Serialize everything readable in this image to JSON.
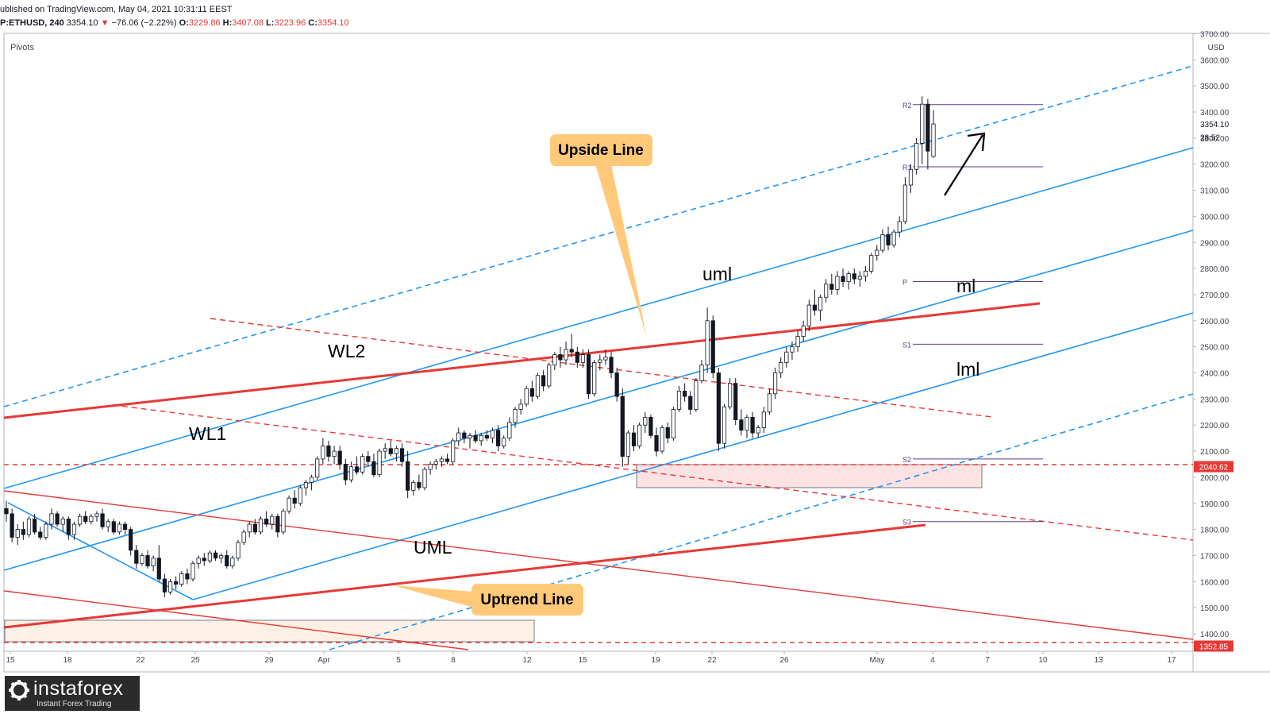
{
  "header": {
    "published": "ublished on TradingView.com, May 04, 2021 10:31:11 EEST",
    "symbol": "P:ETHUSD, 240",
    "price": "3354.10",
    "change_arrow": "▼",
    "change": "−76.06 (−2.22%)",
    "o_label": "O:",
    "o": "3229.86",
    "h_label": "H:",
    "h": "3407.08",
    "l_label": "L:",
    "l": "3223.96",
    "c_label": "C:",
    "c": "3354.10"
  },
  "indicator": "Pivots",
  "logo": {
    "name": "instaforex",
    "tagline": "Instant Forex Trading"
  },
  "chart_data": {
    "type": "candlestick",
    "currency": "USD",
    "y_ticks": [
      1400,
      1500,
      1600,
      1700,
      1800,
      1900,
      2000,
      2100,
      2200,
      2300,
      2400,
      2500,
      2600,
      2700,
      2800,
      2900,
      3000,
      3100,
      3200,
      3300,
      3400,
      3500,
      3600,
      3700
    ],
    "x_ticks": [
      "15",
      "18",
      "22",
      "25",
      "29",
      "Apr",
      "5",
      "8",
      "12",
      "15",
      "19",
      "22",
      "26",
      "May",
      "4",
      "7",
      "10",
      "13",
      "17"
    ],
    "price_labels": [
      {
        "text": "3354.10",
        "value": 3354.1
      },
      {
        "text": "28:52",
        "value": 3304
      }
    ],
    "level_labels": [
      {
        "text": "2040.62",
        "value": 2040.62,
        "color": "#e53935"
      },
      {
        "text": "1352.85",
        "value": 1352.85,
        "color": "#e53935"
      }
    ],
    "pivots": [
      {
        "name": "R2",
        "value": 3428
      },
      {
        "name": "R1",
        "value": 3190
      },
      {
        "name": "P",
        "value": 2750
      },
      {
        "name": "S1",
        "value": 2510
      },
      {
        "name": "S2",
        "value": 2070
      },
      {
        "name": "S3",
        "value": 1830
      }
    ],
    "line_labels": [
      "uml",
      "ml",
      "lml",
      "WL1",
      "WL2",
      "UML"
    ],
    "callouts": [
      "Upside Line",
      "Uptrend Line"
    ],
    "candles": [
      {
        "o": 1880,
        "h": 1910,
        "l": 1830,
        "c": 1860
      },
      {
        "o": 1860,
        "h": 1880,
        "l": 1750,
        "c": 1770
      },
      {
        "o": 1770,
        "h": 1820,
        "l": 1740,
        "c": 1800
      },
      {
        "o": 1800,
        "h": 1830,
        "l": 1760,
        "c": 1780
      },
      {
        "o": 1780,
        "h": 1850,
        "l": 1770,
        "c": 1840
      },
      {
        "o": 1840,
        "h": 1860,
        "l": 1780,
        "c": 1790
      },
      {
        "o": 1790,
        "h": 1810,
        "l": 1760,
        "c": 1770
      },
      {
        "o": 1770,
        "h": 1830,
        "l": 1760,
        "c": 1820
      },
      {
        "o": 1820,
        "h": 1880,
        "l": 1800,
        "c": 1860
      },
      {
        "o": 1860,
        "h": 1870,
        "l": 1810,
        "c": 1820
      },
      {
        "o": 1820,
        "h": 1850,
        "l": 1790,
        "c": 1840
      },
      {
        "o": 1840,
        "h": 1850,
        "l": 1760,
        "c": 1780
      },
      {
        "o": 1780,
        "h": 1830,
        "l": 1760,
        "c": 1820
      },
      {
        "o": 1820,
        "h": 1860,
        "l": 1810,
        "c": 1850
      },
      {
        "o": 1850,
        "h": 1870,
        "l": 1820,
        "c": 1830
      },
      {
        "o": 1830,
        "h": 1860,
        "l": 1820,
        "c": 1850
      },
      {
        "o": 1850,
        "h": 1870,
        "l": 1830,
        "c": 1860
      },
      {
        "o": 1860,
        "h": 1880,
        "l": 1800,
        "c": 1810
      },
      {
        "o": 1810,
        "h": 1840,
        "l": 1790,
        "c": 1830
      },
      {
        "o": 1830,
        "h": 1840,
        "l": 1780,
        "c": 1790
      },
      {
        "o": 1790,
        "h": 1830,
        "l": 1780,
        "c": 1820
      },
      {
        "o": 1820,
        "h": 1830,
        "l": 1780,
        "c": 1800
      },
      {
        "o": 1800,
        "h": 1810,
        "l": 1700,
        "c": 1720
      },
      {
        "o": 1720,
        "h": 1740,
        "l": 1650,
        "c": 1670
      },
      {
        "o": 1670,
        "h": 1710,
        "l": 1660,
        "c": 1700
      },
      {
        "o": 1700,
        "h": 1720,
        "l": 1650,
        "c": 1660
      },
      {
        "o": 1660,
        "h": 1700,
        "l": 1640,
        "c": 1690
      },
      {
        "o": 1690,
        "h": 1740,
        "l": 1600,
        "c": 1610
      },
      {
        "o": 1610,
        "h": 1630,
        "l": 1540,
        "c": 1560
      },
      {
        "o": 1560,
        "h": 1610,
        "l": 1550,
        "c": 1600
      },
      {
        "o": 1600,
        "h": 1620,
        "l": 1570,
        "c": 1590
      },
      {
        "o": 1590,
        "h": 1640,
        "l": 1580,
        "c": 1630
      },
      {
        "o": 1630,
        "h": 1650,
        "l": 1590,
        "c": 1610
      },
      {
        "o": 1610,
        "h": 1680,
        "l": 1600,
        "c": 1670
      },
      {
        "o": 1670,
        "h": 1700,
        "l": 1650,
        "c": 1690
      },
      {
        "o": 1690,
        "h": 1710,
        "l": 1660,
        "c": 1680
      },
      {
        "o": 1680,
        "h": 1720,
        "l": 1670,
        "c": 1710
      },
      {
        "o": 1710,
        "h": 1720,
        "l": 1680,
        "c": 1690
      },
      {
        "o": 1690,
        "h": 1710,
        "l": 1670,
        "c": 1700
      },
      {
        "o": 1700,
        "h": 1720,
        "l": 1650,
        "c": 1660
      },
      {
        "o": 1660,
        "h": 1700,
        "l": 1650,
        "c": 1690
      },
      {
        "o": 1690,
        "h": 1760,
        "l": 1680,
        "c": 1750
      },
      {
        "o": 1750,
        "h": 1800,
        "l": 1740,
        "c": 1790
      },
      {
        "o": 1790,
        "h": 1830,
        "l": 1770,
        "c": 1820
      },
      {
        "o": 1820,
        "h": 1840,
        "l": 1780,
        "c": 1790
      },
      {
        "o": 1790,
        "h": 1850,
        "l": 1780,
        "c": 1840
      },
      {
        "o": 1840,
        "h": 1870,
        "l": 1810,
        "c": 1820
      },
      {
        "o": 1820,
        "h": 1860,
        "l": 1800,
        "c": 1850
      },
      {
        "o": 1850,
        "h": 1860,
        "l": 1770,
        "c": 1790
      },
      {
        "o": 1790,
        "h": 1880,
        "l": 1780,
        "c": 1870
      },
      {
        "o": 1870,
        "h": 1930,
        "l": 1860,
        "c": 1920
      },
      {
        "o": 1920,
        "h": 1950,
        "l": 1880,
        "c": 1900
      },
      {
        "o": 1900,
        "h": 1970,
        "l": 1890,
        "c": 1960
      },
      {
        "o": 1960,
        "h": 1990,
        "l": 1930,
        "c": 1980
      },
      {
        "o": 1980,
        "h": 2010,
        "l": 1950,
        "c": 2000
      },
      {
        "o": 2000,
        "h": 2080,
        "l": 1990,
        "c": 2070
      },
      {
        "o": 2070,
        "h": 2150,
        "l": 2050,
        "c": 2120
      },
      {
        "o": 2120,
        "h": 2140,
        "l": 2060,
        "c": 2080
      },
      {
        "o": 2080,
        "h": 2120,
        "l": 2050,
        "c": 2100
      },
      {
        "o": 2100,
        "h": 2120,
        "l": 2030,
        "c": 2050
      },
      {
        "o": 2050,
        "h": 2070,
        "l": 1970,
        "c": 1990
      },
      {
        "o": 1990,
        "h": 2060,
        "l": 1980,
        "c": 2040
      },
      {
        "o": 2040,
        "h": 2080,
        "l": 2010,
        "c": 2020
      },
      {
        "o": 2020,
        "h": 2090,
        "l": 2010,
        "c": 2080
      },
      {
        "o": 2080,
        "h": 2100,
        "l": 2040,
        "c": 2060
      },
      {
        "o": 2060,
        "h": 2090,
        "l": 2000,
        "c": 2010
      },
      {
        "o": 2010,
        "h": 2110,
        "l": 2000,
        "c": 2100
      },
      {
        "o": 2100,
        "h": 2130,
        "l": 2070,
        "c": 2110
      },
      {
        "o": 2110,
        "h": 2140,
        "l": 2080,
        "c": 2090
      },
      {
        "o": 2090,
        "h": 2120,
        "l": 2060,
        "c": 2110
      },
      {
        "o": 2110,
        "h": 2130,
        "l": 2040,
        "c": 2060
      },
      {
        "o": 2060,
        "h": 2100,
        "l": 1920,
        "c": 1950
      },
      {
        "o": 1950,
        "h": 1990,
        "l": 1930,
        "c": 1980
      },
      {
        "o": 1980,
        "h": 2010,
        "l": 1950,
        "c": 1960
      },
      {
        "o": 1960,
        "h": 2040,
        "l": 1950,
        "c": 2030
      },
      {
        "o": 2030,
        "h": 2060,
        "l": 2010,
        "c": 2050
      },
      {
        "o": 2050,
        "h": 2070,
        "l": 2030,
        "c": 2060
      },
      {
        "o": 2060,
        "h": 2080,
        "l": 2040,
        "c": 2070
      },
      {
        "o": 2070,
        "h": 2090,
        "l": 2050,
        "c": 2060
      },
      {
        "o": 2060,
        "h": 2150,
        "l": 2050,
        "c": 2140
      },
      {
        "o": 2140,
        "h": 2190,
        "l": 2120,
        "c": 2170
      },
      {
        "o": 2170,
        "h": 2180,
        "l": 2130,
        "c": 2150
      },
      {
        "o": 2150,
        "h": 2170,
        "l": 2110,
        "c": 2160
      },
      {
        "o": 2160,
        "h": 2180,
        "l": 2130,
        "c": 2140
      },
      {
        "o": 2140,
        "h": 2170,
        "l": 2120,
        "c": 2160
      },
      {
        "o": 2160,
        "h": 2180,
        "l": 2140,
        "c": 2150
      },
      {
        "o": 2150,
        "h": 2190,
        "l": 2130,
        "c": 2180
      },
      {
        "o": 2180,
        "h": 2200,
        "l": 2100,
        "c": 2120
      },
      {
        "o": 2120,
        "h": 2160,
        "l": 2110,
        "c": 2150
      },
      {
        "o": 2150,
        "h": 2230,
        "l": 2140,
        "c": 2210
      },
      {
        "o": 2210,
        "h": 2270,
        "l": 2190,
        "c": 2260
      },
      {
        "o": 2260,
        "h": 2300,
        "l": 2240,
        "c": 2280
      },
      {
        "o": 2280,
        "h": 2350,
        "l": 2270,
        "c": 2340
      },
      {
        "o": 2340,
        "h": 2370,
        "l": 2290,
        "c": 2310
      },
      {
        "o": 2310,
        "h": 2400,
        "l": 2300,
        "c": 2390
      },
      {
        "o": 2390,
        "h": 2410,
        "l": 2330,
        "c": 2350
      },
      {
        "o": 2350,
        "h": 2440,
        "l": 2340,
        "c": 2430
      },
      {
        "o": 2430,
        "h": 2480,
        "l": 2410,
        "c": 2470
      },
      {
        "o": 2470,
        "h": 2500,
        "l": 2420,
        "c": 2450
      },
      {
        "o": 2450,
        "h": 2520,
        "l": 2430,
        "c": 2490
      },
      {
        "o": 2490,
        "h": 2550,
        "l": 2460,
        "c": 2480
      },
      {
        "o": 2480,
        "h": 2500,
        "l": 2420,
        "c": 2440
      },
      {
        "o": 2440,
        "h": 2490,
        "l": 2420,
        "c": 2470
      },
      {
        "o": 2470,
        "h": 2490,
        "l": 2300,
        "c": 2320
      },
      {
        "o": 2320,
        "h": 2450,
        "l": 2310,
        "c": 2440
      },
      {
        "o": 2440,
        "h": 2470,
        "l": 2410,
        "c": 2450
      },
      {
        "o": 2450,
        "h": 2490,
        "l": 2430,
        "c": 2460
      },
      {
        "o": 2460,
        "h": 2480,
        "l": 2380,
        "c": 2400
      },
      {
        "o": 2400,
        "h": 2420,
        "l": 2290,
        "c": 2310
      },
      {
        "o": 2310,
        "h": 2340,
        "l": 2040,
        "c": 2080
      },
      {
        "o": 2080,
        "h": 2180,
        "l": 2050,
        "c": 2170
      },
      {
        "o": 2170,
        "h": 2200,
        "l": 2100,
        "c": 2120
      },
      {
        "o": 2120,
        "h": 2210,
        "l": 2110,
        "c": 2200
      },
      {
        "o": 2200,
        "h": 2250,
        "l": 2170,
        "c": 2230
      },
      {
        "o": 2230,
        "h": 2240,
        "l": 2150,
        "c": 2160
      },
      {
        "o": 2160,
        "h": 2190,
        "l": 2080,
        "c": 2100
      },
      {
        "o": 2100,
        "h": 2200,
        "l": 2090,
        "c": 2190
      },
      {
        "o": 2190,
        "h": 2210,
        "l": 2130,
        "c": 2150
      },
      {
        "o": 2150,
        "h": 2270,
        "l": 2140,
        "c": 2260
      },
      {
        "o": 2260,
        "h": 2350,
        "l": 2250,
        "c": 2330
      },
      {
        "o": 2330,
        "h": 2360,
        "l": 2290,
        "c": 2310
      },
      {
        "o": 2310,
        "h": 2330,
        "l": 2240,
        "c": 2260
      },
      {
        "o": 2260,
        "h": 2380,
        "l": 2250,
        "c": 2370
      },
      {
        "o": 2370,
        "h": 2450,
        "l": 2360,
        "c": 2430
      },
      {
        "o": 2430,
        "h": 2650,
        "l": 2400,
        "c": 2600
      },
      {
        "o": 2600,
        "h": 2620,
        "l": 2380,
        "c": 2400
      },
      {
        "o": 2400,
        "h": 2420,
        "l": 2100,
        "c": 2130
      },
      {
        "o": 2130,
        "h": 2280,
        "l": 2110,
        "c": 2270
      },
      {
        "o": 2270,
        "h": 2380,
        "l": 2260,
        "c": 2360
      },
      {
        "o": 2360,
        "h": 2380,
        "l": 2200,
        "c": 2220
      },
      {
        "o": 2220,
        "h": 2260,
        "l": 2160,
        "c": 2180
      },
      {
        "o": 2180,
        "h": 2240,
        "l": 2150,
        "c": 2230
      },
      {
        "o": 2230,
        "h": 2250,
        "l": 2150,
        "c": 2170
      },
      {
        "o": 2170,
        "h": 2200,
        "l": 2150,
        "c": 2190
      },
      {
        "o": 2190,
        "h": 2270,
        "l": 2170,
        "c": 2250
      },
      {
        "o": 2250,
        "h": 2340,
        "l": 2240,
        "c": 2320
      },
      {
        "o": 2320,
        "h": 2420,
        "l": 2300,
        "c": 2400
      },
      {
        "o": 2400,
        "h": 2460,
        "l": 2380,
        "c": 2440
      },
      {
        "o": 2440,
        "h": 2500,
        "l": 2420,
        "c": 2480
      },
      {
        "o": 2480,
        "h": 2520,
        "l": 2450,
        "c": 2500
      },
      {
        "o": 2500,
        "h": 2560,
        "l": 2480,
        "c": 2540
      },
      {
        "o": 2540,
        "h": 2600,
        "l": 2520,
        "c": 2580
      },
      {
        "o": 2580,
        "h": 2680,
        "l": 2560,
        "c": 2660
      },
      {
        "o": 2660,
        "h": 2720,
        "l": 2620,
        "c": 2640
      },
      {
        "o": 2640,
        "h": 2700,
        "l": 2600,
        "c": 2690
      },
      {
        "o": 2690,
        "h": 2760,
        "l": 2670,
        "c": 2740
      },
      {
        "o": 2740,
        "h": 2780,
        "l": 2700,
        "c": 2720
      },
      {
        "o": 2720,
        "h": 2790,
        "l": 2700,
        "c": 2770
      },
      {
        "o": 2770,
        "h": 2800,
        "l": 2730,
        "c": 2750
      },
      {
        "o": 2750,
        "h": 2790,
        "l": 2720,
        "c": 2780
      },
      {
        "o": 2780,
        "h": 2800,
        "l": 2740,
        "c": 2760
      },
      {
        "o": 2760,
        "h": 2790,
        "l": 2730,
        "c": 2770
      },
      {
        "o": 2770,
        "h": 2810,
        "l": 2750,
        "c": 2790
      },
      {
        "o": 2790,
        "h": 2860,
        "l": 2780,
        "c": 2850
      },
      {
        "o": 2850,
        "h": 2890,
        "l": 2830,
        "c": 2870
      },
      {
        "o": 2870,
        "h": 2950,
        "l": 2860,
        "c": 2930
      },
      {
        "o": 2930,
        "h": 2960,
        "l": 2870,
        "c": 2890
      },
      {
        "o": 2890,
        "h": 2950,
        "l": 2880,
        "c": 2940
      },
      {
        "o": 2940,
        "h": 3000,
        "l": 2920,
        "c": 2980
      },
      {
        "o": 2980,
        "h": 3150,
        "l": 2970,
        "c": 3120
      },
      {
        "o": 3120,
        "h": 3200,
        "l": 3090,
        "c": 3180
      },
      {
        "o": 3180,
        "h": 3300,
        "l": 3160,
        "c": 3280
      },
      {
        "o": 3280,
        "h": 3460,
        "l": 3200,
        "c": 3430
      },
      {
        "o": 3430,
        "h": 3450,
        "l": 3180,
        "c": 3250
      },
      {
        "o": 3229.86,
        "h": 3407.08,
        "l": 3223.96,
        "c": 3354.1
      }
    ]
  }
}
